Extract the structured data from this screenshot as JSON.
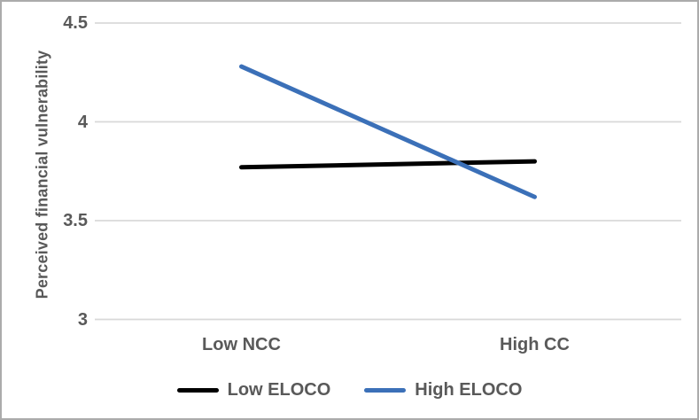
{
  "chart_data": {
    "type": "line",
    "categories": [
      "Low NCC",
      "High CC"
    ],
    "series": [
      {
        "name": "Low ELOCO",
        "color": "#000000",
        "values": [
          3.77,
          3.8
        ]
      },
      {
        "name": "High ELOCO",
        "color": "#3B70B8",
        "values": [
          4.28,
          3.62
        ]
      }
    ],
    "title": "",
    "xlabel": "",
    "ylabel": "Perceived financial vulnerability",
    "ylim": [
      3,
      4.5
    ],
    "yticks": [
      4.5,
      4,
      3.5,
      3
    ],
    "grid": "horizontal",
    "legend_position": "bottom",
    "line_width": 5
  },
  "colors": {
    "background": "#FFFFFF",
    "border": "#ABABAB",
    "gridline": "#D9D9D9",
    "axis_text": "#595959"
  }
}
